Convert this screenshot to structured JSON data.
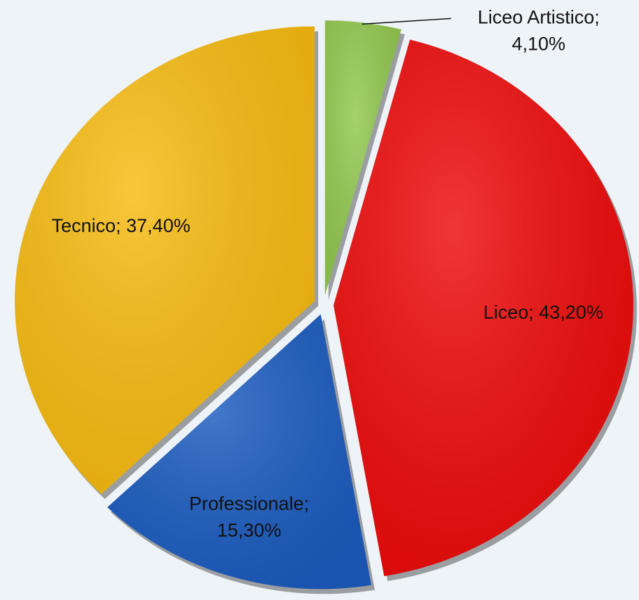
{
  "chart_data": {
    "type": "pie",
    "categories": [
      "Liceo Artistico",
      "Liceo",
      "Professionale",
      "Tecnico"
    ],
    "values": [
      4.1,
      43.2,
      15.3,
      37.4
    ],
    "value_labels": [
      "4,10%",
      "43,20%",
      "15,30%",
      "37,40%"
    ],
    "separator": ";",
    "colors": [
      "#92c84f",
      "#ee0a0a",
      "#1a5bbf",
      "#f7bb10"
    ]
  }
}
